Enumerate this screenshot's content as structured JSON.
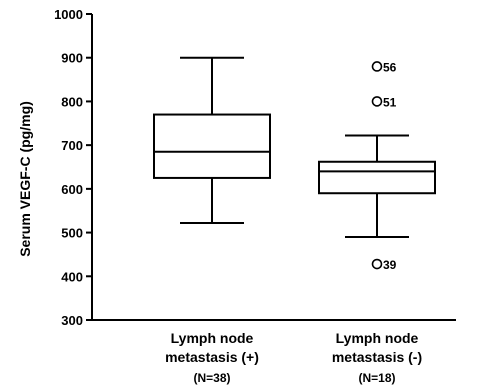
{
  "chart_data": {
    "type": "box",
    "ylabel": "Serum VEGF-C (pg/mg)",
    "ylim": [
      300,
      1000
    ],
    "yticks": [
      300,
      400,
      500,
      600,
      700,
      800,
      900,
      1000
    ],
    "groups": [
      {
        "label_line1": "Lymph node",
        "label_line2": "metastasis (+)",
        "n_label": "(N=38)",
        "whisker_low": 522,
        "q1": 625,
        "median": 685,
        "q3": 770,
        "whisker_high": 900,
        "outliers": []
      },
      {
        "label_line1": "Lymph node",
        "label_line2": "metastasis (-)",
        "n_label": "(N=18)",
        "whisker_low": 490,
        "q1": 590,
        "median": 640,
        "q3": 662,
        "whisker_high": 722,
        "outliers": [
          {
            "value": 880,
            "label": "56"
          },
          {
            "value": 800,
            "label": "51"
          },
          {
            "value": 428,
            "label": "39"
          }
        ]
      }
    ]
  }
}
